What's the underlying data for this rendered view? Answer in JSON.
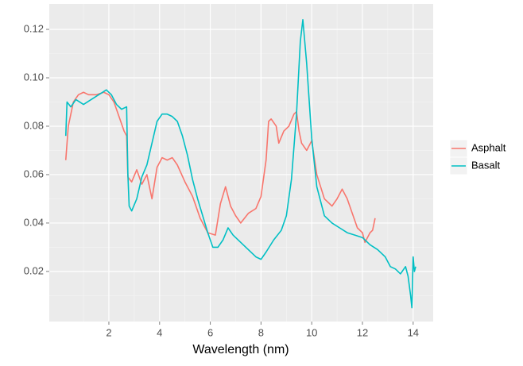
{
  "chart_data": {
    "type": "line",
    "x_label": "Wavelength (nm)",
    "xlim": [
      -0.35,
      14.79
    ],
    "ylim": [
      -0.0007,
      0.1305
    ],
    "xticks": [
      2,
      4,
      6,
      8,
      10,
      12,
      14
    ],
    "yticks": [
      0.02,
      0.04,
      0.06,
      0.08,
      {
        "value": 0.1,
        "label": "0.10"
      },
      0.12
    ],
    "grid": true,
    "legend": "right",
    "series": [
      {
        "name": "Asphalt",
        "color": "#F8766D",
        "x": [
          0.3,
          0.4,
          0.6,
          0.8,
          1.0,
          1.2,
          1.5,
          1.8,
          2.0,
          2.2,
          2.4,
          2.6,
          2.7,
          2.75,
          2.9,
          3.1,
          3.3,
          3.5,
          3.7,
          3.9,
          4.1,
          4.3,
          4.5,
          4.7,
          5.0,
          5.3,
          5.6,
          5.9,
          6.2,
          6.4,
          6.6,
          6.8,
          7.0,
          7.2,
          7.5,
          7.8,
          8.0,
          8.2,
          8.3,
          8.4,
          8.6,
          8.7,
          8.9,
          9.1,
          9.3,
          9.4,
          9.5,
          9.6,
          9.8,
          10.0,
          10.2,
          10.5,
          10.8,
          11.0,
          11.2,
          11.4,
          11.6,
          11.8,
          12.0,
          12.1,
          12.3,
          12.4,
          12.5
        ],
        "values": [
          0.066,
          0.08,
          0.09,
          0.093,
          0.094,
          0.093,
          0.093,
          0.094,
          0.093,
          0.09,
          0.084,
          0.078,
          0.076,
          0.059,
          0.057,
          0.062,
          0.056,
          0.06,
          0.05,
          0.063,
          0.067,
          0.066,
          0.067,
          0.064,
          0.057,
          0.051,
          0.042,
          0.036,
          0.035,
          0.048,
          0.055,
          0.047,
          0.043,
          0.04,
          0.044,
          0.046,
          0.051,
          0.066,
          0.082,
          0.083,
          0.08,
          0.073,
          0.078,
          0.08,
          0.085,
          0.086,
          0.078,
          0.073,
          0.07,
          0.074,
          0.06,
          0.05,
          0.047,
          0.05,
          0.054,
          0.05,
          0.044,
          0.038,
          0.036,
          0.032,
          0.036,
          0.037,
          0.042
        ]
      },
      {
        "name": "Basalt",
        "color": "#00BFC4",
        "x": [
          0.3,
          0.35,
          0.5,
          0.7,
          1.0,
          1.3,
          1.6,
          1.9,
          2.1,
          2.3,
          2.5,
          2.7,
          2.75,
          2.8,
          2.9,
          3.1,
          3.3,
          3.5,
          3.7,
          3.9,
          4.1,
          4.3,
          4.5,
          4.7,
          4.9,
          5.1,
          5.3,
          5.5,
          5.7,
          5.9,
          6.1,
          6.3,
          6.5,
          6.7,
          6.9,
          7.2,
          7.5,
          7.8,
          8.0,
          8.2,
          8.5,
          8.8,
          9.0,
          9.2,
          9.4,
          9.55,
          9.65,
          9.8,
          10.0,
          10.2,
          10.5,
          10.8,
          11.1,
          11.4,
          11.7,
          12.0,
          12.3,
          12.6,
          12.9,
          13.1,
          13.3,
          13.5,
          13.7,
          13.8,
          13.9,
          13.95,
          14.0,
          14.05,
          14.1
        ],
        "values": [
          0.076,
          0.09,
          0.088,
          0.091,
          0.089,
          0.091,
          0.093,
          0.095,
          0.093,
          0.089,
          0.087,
          0.088,
          0.06,
          0.047,
          0.045,
          0.05,
          0.059,
          0.064,
          0.073,
          0.082,
          0.085,
          0.085,
          0.084,
          0.082,
          0.076,
          0.068,
          0.058,
          0.05,
          0.043,
          0.036,
          0.03,
          0.03,
          0.033,
          0.038,
          0.035,
          0.032,
          0.029,
          0.026,
          0.025,
          0.028,
          0.033,
          0.037,
          0.043,
          0.058,
          0.085,
          0.115,
          0.124,
          0.106,
          0.075,
          0.055,
          0.043,
          0.04,
          0.038,
          0.036,
          0.035,
          0.034,
          0.031,
          0.029,
          0.026,
          0.022,
          0.021,
          0.019,
          0.022,
          0.018,
          0.01,
          0.005,
          0.026,
          0.02,
          0.022
        ]
      }
    ]
  }
}
